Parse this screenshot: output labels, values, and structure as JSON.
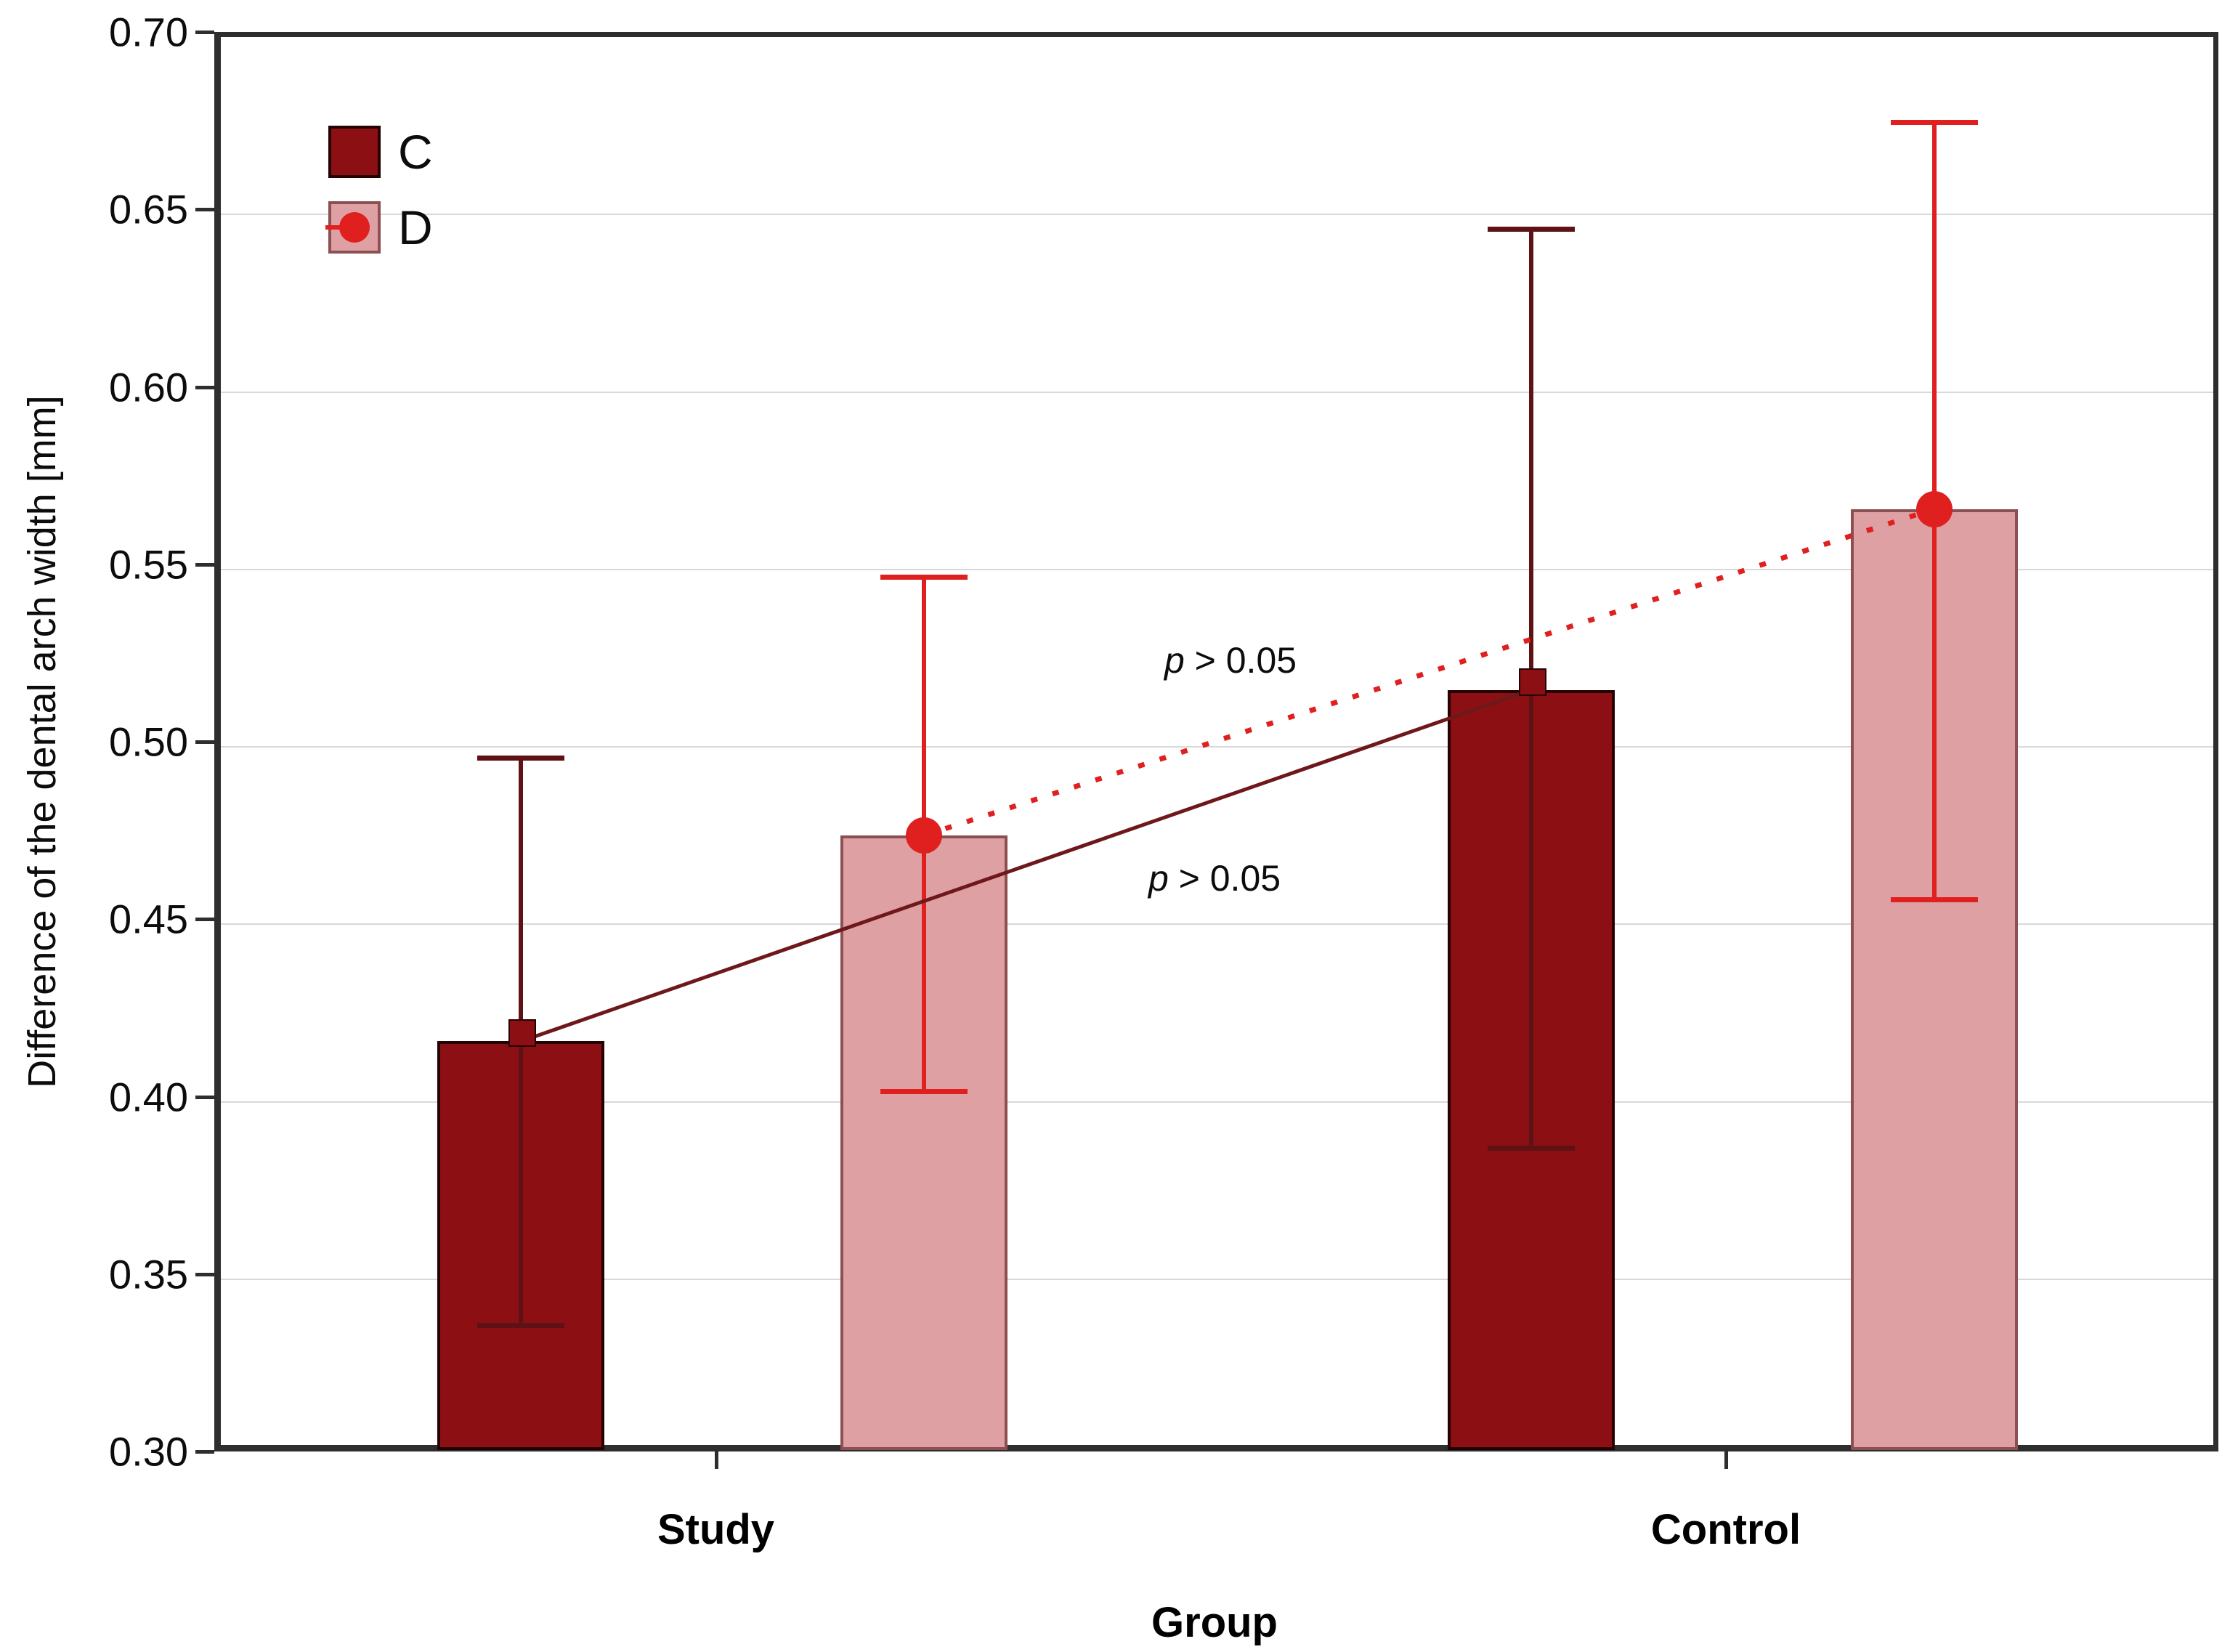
{
  "page_background": "#ffffff",
  "chart_data": {
    "type": "bar",
    "title": "",
    "xlabel": "Group",
    "ylabel": "Difference of the dental arch width [mm]",
    "categories": [
      "Study",
      "Control"
    ],
    "series": [
      {
        "name": "C",
        "values": [
          0.417,
          0.516
        ],
        "err_low": [
          0.337,
          0.387
        ],
        "err_high": [
          0.497,
          0.646
        ],
        "bar_color": "#8c1013",
        "bar_border_color": "#240102",
        "error_color": "#5e1216",
        "marker": "square",
        "marker_color": "#8c1013",
        "marker_border_color": "#240102",
        "line_style": "solid",
        "line_color": "#6e181b"
      },
      {
        "name": "D",
        "values": [
          0.475,
          0.567
        ],
        "err_low": [
          0.403,
          0.457
        ],
        "err_high": [
          0.548,
          0.676
        ],
        "bar_color": "#dfa0a3",
        "bar_border_color": "#8c4f52",
        "error_color": "#e01f1f",
        "marker": "circle",
        "marker_color": "#e01f1f",
        "line_style": "dotted",
        "line_color": "#e01f1f"
      }
    ],
    "ylim": [
      0.3,
      0.7
    ],
    "ytick_labels": [
      "0.30",
      "0.35",
      "0.40",
      "0.45",
      "0.50",
      "0.55",
      "0.60",
      "0.65",
      "0.70"
    ],
    "grid": true,
    "legend_position": "top-left",
    "legend_entries": [
      "C",
      "D"
    ],
    "annotations": [
      {
        "p": "p",
        "rest": " > 0.05",
        "series": "D",
        "between": [
          "Study",
          "Control"
        ]
      },
      {
        "p": "p",
        "rest": " > 0.05",
        "series": "C",
        "between": [
          "Study",
          "Control"
        ]
      }
    ]
  }
}
